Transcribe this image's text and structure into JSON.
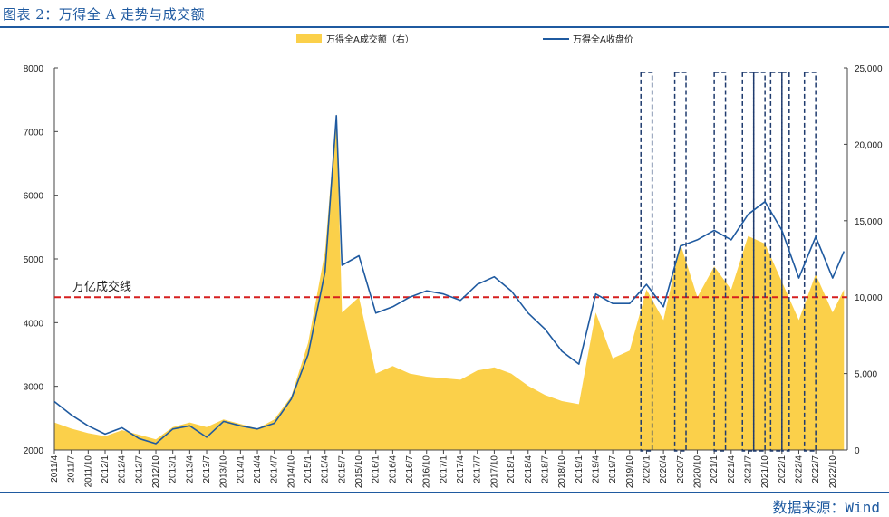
{
  "header": {
    "title": "图表 2：万得全 A 走势与成交额"
  },
  "footer": {
    "source": "数据来源：Wind"
  },
  "chart_data": {
    "type": "area",
    "legend": {
      "position": "top",
      "volume_label": "万得全A成交额（右）",
      "index_label": "万得全A收盘价"
    },
    "reference_line": {
      "value": 10000,
      "axis": "right",
      "label": "万亿成交线",
      "color": "#d61f1f"
    },
    "colors": {
      "volume": "#fbd04a",
      "index": "#1f5aa0",
      "frame": "#1f3b6e"
    },
    "left_axis": {
      "min": 2000,
      "max": 8000,
      "ticks": [
        "2000",
        "3000",
        "4000",
        "5000",
        "6000",
        "7000",
        "8000"
      ]
    },
    "right_axis": {
      "min": 0,
      "max": 25000,
      "ticks": [
        "0",
        "5,000",
        "10,000",
        "15,000",
        "20,000",
        "25,000"
      ]
    },
    "x_ticks": [
      "2011/4",
      "2011/7",
      "2011/10",
      "2012/1",
      "2012/4",
      "2012/7",
      "2012/10",
      "2013/1",
      "2013/4",
      "2013/7",
      "2013/10",
      "2014/1",
      "2014/4",
      "2014/7",
      "2014/10",
      "2015/1",
      "2015/4",
      "2015/7",
      "2015/10",
      "2016/1",
      "2016/4",
      "2016/7",
      "2016/10",
      "2017/1",
      "2017/4",
      "2017/7",
      "2017/10",
      "2018/1",
      "2018/4",
      "2018/7",
      "2018/10",
      "2019/1",
      "2019/4",
      "2019/7",
      "2019/10",
      "2020/1",
      "2020/4",
      "2020/7",
      "2020/10",
      "2021/1",
      "2021/4",
      "2021/7",
      "2021/10",
      "2022/1",
      "2022/4",
      "2022/7",
      "2022/10"
    ],
    "index_series": {
      "name": "万得全A收盘价",
      "x": [
        "2011/4",
        "2011/7",
        "2011/10",
        "2012/1",
        "2012/4",
        "2012/7",
        "2012/10",
        "2013/1",
        "2013/4",
        "2013/7",
        "2013/10",
        "2014/1",
        "2014/4",
        "2014/7",
        "2014/10",
        "2015/1",
        "2015/4",
        "2015/6",
        "2015/7",
        "2015/10",
        "2016/1",
        "2016/4",
        "2016/7",
        "2016/10",
        "2017/1",
        "2017/4",
        "2017/7",
        "2017/10",
        "2018/1",
        "2018/4",
        "2018/7",
        "2018/10",
        "2019/1",
        "2019/4",
        "2019/7",
        "2019/10",
        "2020/1",
        "2020/4",
        "2020/7",
        "2020/10",
        "2021/1",
        "2021/4",
        "2021/7",
        "2021/10",
        "2022/1",
        "2022/4",
        "2022/7",
        "2022/10",
        "2022/12"
      ],
      "values": [
        2760,
        2550,
        2380,
        2250,
        2350,
        2180,
        2100,
        2330,
        2380,
        2200,
        2450,
        2380,
        2330,
        2420,
        2800,
        3500,
        4800,
        7250,
        4900,
        5050,
        4150,
        4250,
        4400,
        4500,
        4450,
        4350,
        4600,
        4720,
        4500,
        4150,
        3900,
        3550,
        3350,
        4450,
        4300,
        4300,
        4600,
        4250,
        5200,
        5300,
        5450,
        5300,
        5700,
        5900,
        5450,
        4700,
        5350,
        4700,
        5120
      ]
    },
    "volume_series": {
      "name": "万得全A成交额（右）",
      "x": [
        "2011/4",
        "2011/7",
        "2011/10",
        "2012/1",
        "2012/4",
        "2012/7",
        "2012/10",
        "2013/1",
        "2013/4",
        "2013/7",
        "2013/10",
        "2014/1",
        "2014/4",
        "2014/7",
        "2014/10",
        "2015/1",
        "2015/4",
        "2015/6",
        "2015/7",
        "2015/10",
        "2016/1",
        "2016/4",
        "2016/7",
        "2016/10",
        "2017/1",
        "2017/4",
        "2017/7",
        "2017/10",
        "2018/1",
        "2018/4",
        "2018/7",
        "2018/10",
        "2019/1",
        "2019/4",
        "2019/7",
        "2019/10",
        "2020/1",
        "2020/4",
        "2020/7",
        "2020/10",
        "2021/1",
        "2021/4",
        "2021/7",
        "2021/10",
        "2022/1",
        "2022/4",
        "2022/7",
        "2022/10",
        "2022/12"
      ],
      "values": [
        1800,
        1400,
        1100,
        900,
        1300,
        1000,
        700,
        1500,
        1800,
        1500,
        2000,
        1700,
        1400,
        2000,
        3500,
        7000,
        13000,
        22000,
        9000,
        10000,
        5000,
        5500,
        5000,
        4800,
        4700,
        4600,
        5200,
        5400,
        5000,
        4200,
        3600,
        3200,
        3000,
        9000,
        6000,
        6500,
        10500,
        8500,
        13500,
        10000,
        12000,
        10500,
        14000,
        13500,
        11000,
        8500,
        11500,
        9000,
        10500
      ]
    },
    "highlight_windows": [
      [
        "2019/12",
        "2020/2"
      ],
      [
        "2020/6",
        "2020/8"
      ],
      [
        "2021/1",
        "2021/3"
      ],
      [
        "2021/6",
        "2021/8"
      ],
      [
        "2021/8",
        "2021/10"
      ],
      [
        "2021/11",
        "2022/1"
      ],
      [
        "2022/1",
        "2022/2"
      ],
      [
        "2022/5",
        "2022/7"
      ]
    ]
  }
}
